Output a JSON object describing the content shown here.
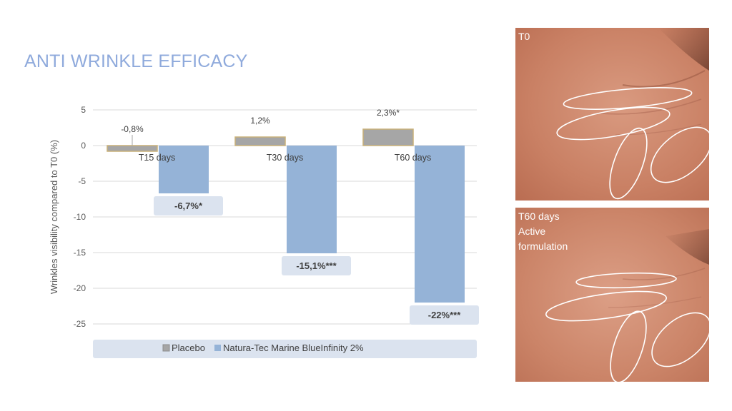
{
  "title": "ANTI WRINKLE EFFICACY",
  "chart_data": {
    "type": "bar",
    "ylabel": "Wrinkles visibility compared to T0 (%)",
    "ylim": [
      -25,
      5
    ],
    "yticks": [
      5,
      0,
      -5,
      -10,
      -15,
      -20,
      -25
    ],
    "grid": true,
    "legend_position": "bottom",
    "categories": [
      "T15 days",
      "T30 days",
      "T60 days"
    ],
    "series": [
      {
        "name": "Placebo",
        "color": "#a6a6a6",
        "values": [
          -0.8,
          1.2,
          2.3
        ],
        "labels": [
          "-0,8%",
          "1,2%",
          "2,3%*"
        ]
      },
      {
        "name": "Natura-Tec Marine BlueInfinity 2%",
        "color": "#95b3d7",
        "values": [
          -6.7,
          -15.1,
          -22
        ],
        "labels": [
          "-6,7%*",
          "-15,1%***",
          "-22%***"
        ]
      }
    ]
  },
  "photos": [
    {
      "label": "T0"
    },
    {
      "label": "T60 days\n Active\nformulation"
    }
  ]
}
